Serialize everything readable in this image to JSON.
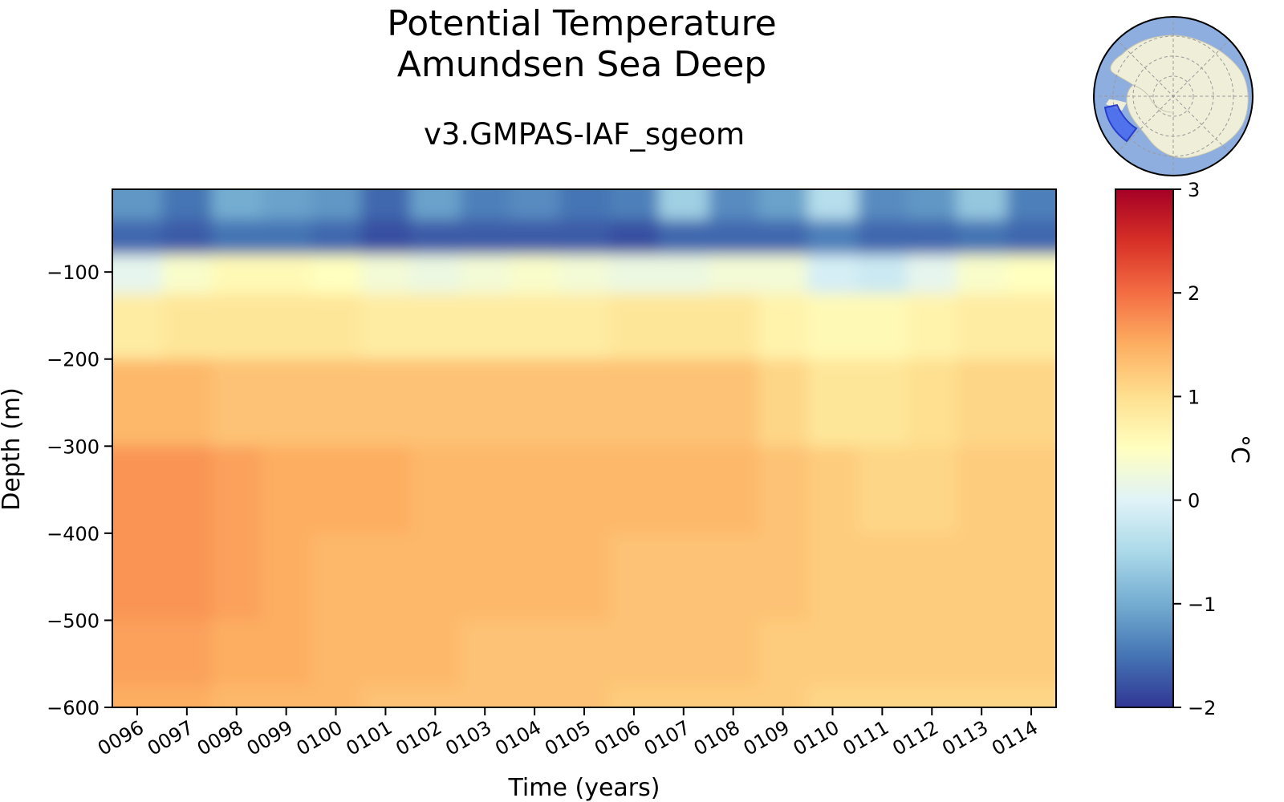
{
  "chart_data": {
    "type": "heatmap",
    "title": [
      "Potential Temperature",
      "Amundsen Sea Deep"
    ],
    "subtitle": "v3.GMPAS-IAF_sgeom",
    "xlabel": "Time (years)",
    "ylabel": "Depth (m)",
    "x_tick_labels": [
      "0096",
      "0097",
      "0098",
      "0099",
      "0100",
      "0101",
      "0102",
      "0103",
      "0104",
      "0105",
      "0106",
      "0107",
      "0108",
      "0109",
      "0110",
      "0111",
      "0112",
      "0113",
      "0114"
    ],
    "x_range_years": [
      95.5,
      114.5
    ],
    "y_tick_labels": [
      "−100",
      "−200",
      "−300",
      "−400",
      "−500",
      "−600"
    ],
    "y_ticks": [
      -100,
      -200,
      -300,
      -400,
      -500,
      -600
    ],
    "y_range": [
      -600,
      -5
    ],
    "colorbar": {
      "label": "°C",
      "range": [
        -2,
        3
      ],
      "ticks": [
        3,
        2,
        1,
        0,
        -1,
        -2
      ],
      "tick_labels": [
        "3",
        "2",
        "1",
        "0",
        "−1",
        "−2"
      ],
      "colormap": "RdYlBu_r"
    },
    "years": [
      96,
      97,
      98,
      99,
      100,
      101,
      102,
      103,
      104,
      105,
      106,
      107,
      108,
      109,
      110,
      111,
      112,
      113,
      114
    ],
    "depths": [
      -20,
      -60,
      -100,
      -150,
      -250,
      -350,
      -450,
      -550,
      -600
    ],
    "temperature": [
      [
        -1.2,
        -1.5,
        -1.0,
        -1.1,
        -1.2,
        -1.6,
        -1.1,
        -1.4,
        -1.3,
        -1.5,
        -1.4,
        -0.6,
        -1.3,
        -1.1,
        -0.4,
        -1.3,
        -1.2,
        -0.7,
        -1.4
      ],
      [
        -1.6,
        -1.7,
        -1.5,
        -1.5,
        -1.6,
        -1.8,
        -1.7,
        -1.7,
        -1.7,
        -1.7,
        -1.8,
        -1.6,
        -1.6,
        -1.6,
        -1.4,
        -1.6,
        -1.6,
        -1.5,
        -1.6
      ],
      [
        0.1,
        0.4,
        0.6,
        0.6,
        0.5,
        0.3,
        0.2,
        0.3,
        0.4,
        0.3,
        0.2,
        0.2,
        0.3,
        0.3,
        -0.1,
        -0.2,
        0.1,
        0.4,
        0.5
      ],
      [
        0.8,
        0.9,
        0.9,
        0.9,
        0.9,
        0.8,
        0.8,
        0.8,
        0.8,
        0.8,
        0.9,
        0.9,
        0.9,
        0.7,
        0.6,
        0.6,
        0.7,
        0.8,
        0.8
      ],
      [
        1.4,
        1.4,
        1.3,
        1.3,
        1.3,
        1.3,
        1.3,
        1.3,
        1.3,
        1.3,
        1.3,
        1.3,
        1.3,
        1.1,
        0.9,
        0.9,
        1.0,
        1.1,
        1.1
      ],
      [
        1.7,
        1.7,
        1.6,
        1.5,
        1.5,
        1.5,
        1.4,
        1.4,
        1.4,
        1.4,
        1.4,
        1.4,
        1.4,
        1.3,
        1.2,
        1.1,
        1.1,
        1.2,
        1.2
      ],
      [
        1.7,
        1.7,
        1.6,
        1.5,
        1.4,
        1.4,
        1.4,
        1.4,
        1.4,
        1.4,
        1.3,
        1.3,
        1.3,
        1.3,
        1.2,
        1.2,
        1.2,
        1.2,
        1.2
      ],
      [
        1.6,
        1.6,
        1.5,
        1.5,
        1.4,
        1.4,
        1.4,
        1.3,
        1.3,
        1.3,
        1.3,
        1.3,
        1.3,
        1.2,
        1.2,
        1.2,
        1.2,
        1.2,
        1.2
      ],
      [
        1.5,
        1.5,
        1.4,
        1.4,
        1.4,
        1.3,
        1.3,
        1.3,
        1.3,
        1.3,
        1.2,
        1.2,
        1.2,
        1.2,
        1.1,
        1.1,
        1.1,
        1.1,
        1.1
      ]
    ],
    "inset_map": {
      "description_icon": "antarctica-map-icon",
      "ocean_color": "#8eaee0",
      "land_color": "#efeed9",
      "region_color": "#3b5ef0"
    }
  }
}
